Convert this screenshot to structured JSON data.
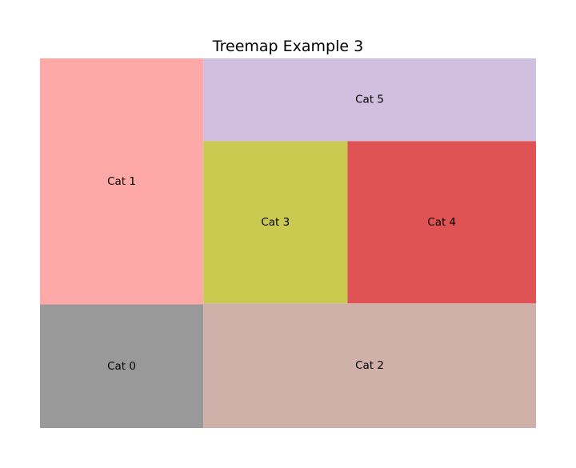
{
  "chart_data": {
    "type": "treemap",
    "title": "Treemap Example 3",
    "xlabel": "",
    "ylabel": "",
    "axes_visible": false,
    "grid": false,
    "legend": "none",
    "cells": [
      {
        "label": "Cat 0",
        "value": 10.7,
        "color": "#999999"
      },
      {
        "label": "Cat 1",
        "value": 21.3,
        "color": "#fea8a7"
      },
      {
        "label": "Cat 2",
        "value": 22.0,
        "color": "#cfb1aa"
      },
      {
        "label": "Cat 3",
        "value": 12.4,
        "color": "#cbca50"
      },
      {
        "label": "Cat 4",
        "value": 16.2,
        "color": "#e05355"
      },
      {
        "label": "Cat 5",
        "value": 14.6,
        "color": "#d1bfdf"
      }
    ]
  }
}
